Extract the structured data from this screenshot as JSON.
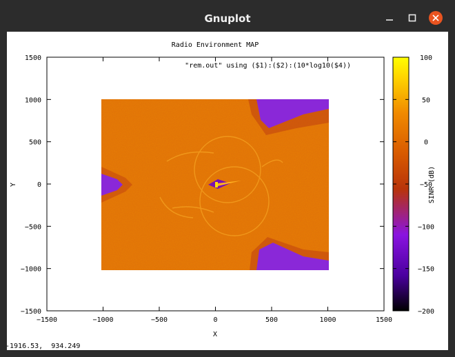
{
  "window": {
    "title": "Gnuplot",
    "minimize_icon": "minimize-icon",
    "maximize_icon": "maximize-icon",
    "close_icon": "close-icon",
    "close_color": "#e95420"
  },
  "status": {
    "coordinates": "-1916.53,  934.249"
  },
  "chart_data": {
    "type": "heatmap",
    "title": "Radio Environment MAP",
    "plot_command": "\"rem.out\" using ($1):($2):(10*log10($4))",
    "xlabel": "X",
    "ylabel": "Y",
    "xlim": [
      -1500,
      1500
    ],
    "ylim": [
      -1500,
      1500
    ],
    "x_ticks": [
      -1500,
      -1000,
      -500,
      0,
      500,
      1000,
      1500
    ],
    "y_ticks": [
      -1500,
      -1000,
      -500,
      0,
      500,
      1000,
      1500
    ],
    "colorbar": {
      "label": "SINR (dB)",
      "range": [
        -200,
        100
      ],
      "ticks": [
        100,
        50,
        0,
        -50,
        -100,
        -150,
        -200
      ],
      "palette": [
        "#000000",
        "#4b00a0",
        "#8a14e0",
        "#b8340a",
        "#d85a00",
        "#f08a00",
        "#ffd400",
        "#ffff00"
      ]
    },
    "data_extent": {
      "x": [
        -1000,
        1000
      ],
      "y": [
        -1000,
        1000
      ]
    },
    "dominant_color": "#e0700a",
    "grid": false,
    "legend": "top-right"
  }
}
